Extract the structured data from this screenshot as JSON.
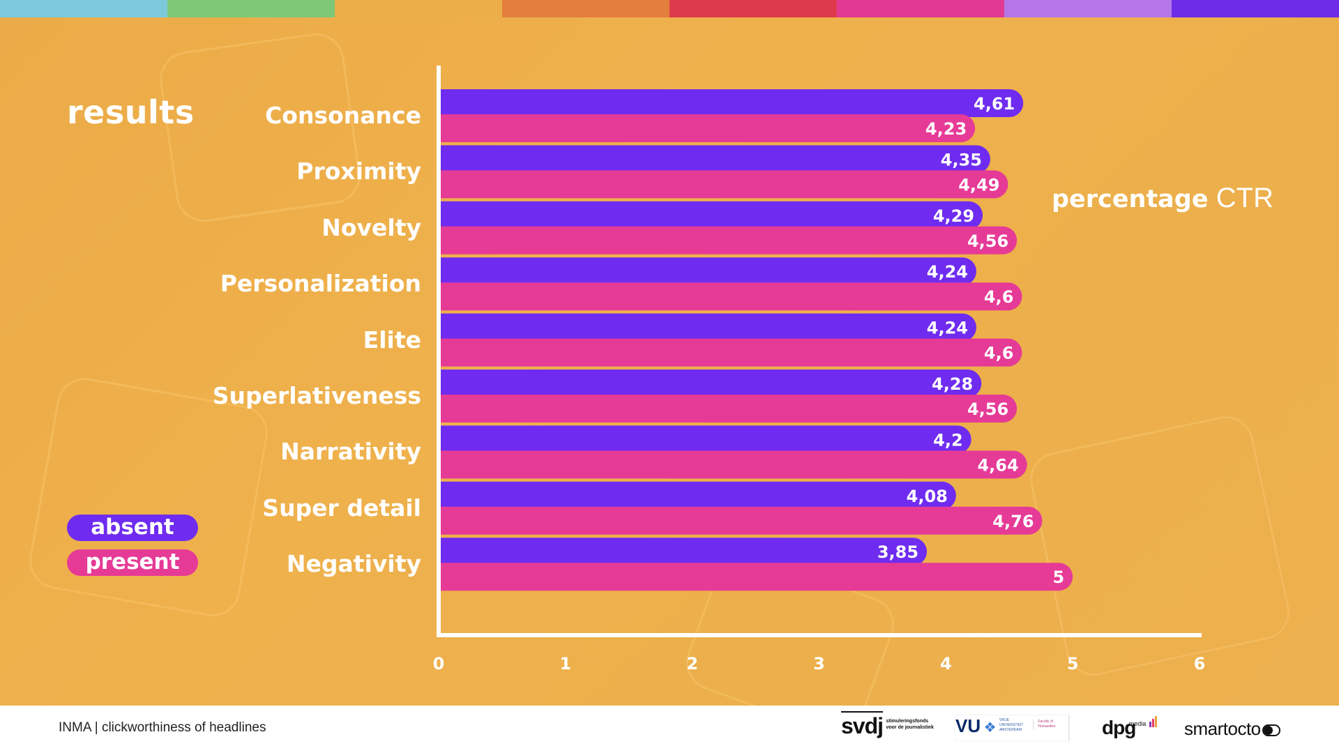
{
  "slide": {
    "title": "results",
    "unit_label_bold": "percentage",
    "unit_label_normal": "CTR",
    "top_strip_colors": [
      "#7ec8dc",
      "#7ec878",
      "#ebae48",
      "#e37e3c",
      "#de3a4d",
      "#e23a94",
      "#b576e8",
      "#6f2ce8"
    ],
    "background_color": "#ecad4a"
  },
  "legend": [
    {
      "label": "absent",
      "color": "#6f2cf0"
    },
    {
      "label": "present",
      "color": "#e63a97"
    }
  ],
  "chart_data": {
    "type": "bar",
    "orientation": "horizontal",
    "title": "results",
    "xlabel": "percentage CTR",
    "ylabel": "",
    "xlim": [
      0,
      6
    ],
    "xticks": [
      "0",
      "1",
      "2",
      "3",
      "4",
      "5",
      "6"
    ],
    "grid": false,
    "legend_position": "bottom-left",
    "categories": [
      "Consonance",
      "Proximity",
      "Novelty",
      "Personalization",
      "Elite",
      "Superlativeness",
      "Narrativity",
      "Super detail",
      "Negativity"
    ],
    "series": [
      {
        "name": "absent",
        "color": "#6f2cf0",
        "values": [
          4.61,
          4.35,
          4.29,
          4.24,
          4.24,
          4.28,
          4.2,
          4.08,
          3.85
        ],
        "labels": [
          "4,61",
          "4,35",
          "4,29",
          "4,24",
          "4,24",
          "4,28",
          "4,2",
          "4,08",
          "3,85"
        ]
      },
      {
        "name": "present",
        "color": "#e63a97",
        "values": [
          4.23,
          4.49,
          4.56,
          4.6,
          4.6,
          4.56,
          4.64,
          4.76,
          5
        ],
        "labels": [
          "4,23",
          "4,49",
          "4,56",
          "4,6",
          "4,6",
          "4,56",
          "4,64",
          "4,76",
          "5"
        ]
      }
    ]
  },
  "footer": {
    "text": "INMA | clickworthiness of headlines",
    "logos": {
      "svdj": "svdj",
      "svdj_sub": "stimuleringsfonds voor de journalistiek",
      "vu": "VU",
      "vu_sub": "VRIJE UNIVERSITEIT AMSTERDAM",
      "vu_faculty": "Faculty of Humanities",
      "dpg": "dpg",
      "dpg_sup": "media",
      "smartocto": "smartocto"
    }
  }
}
